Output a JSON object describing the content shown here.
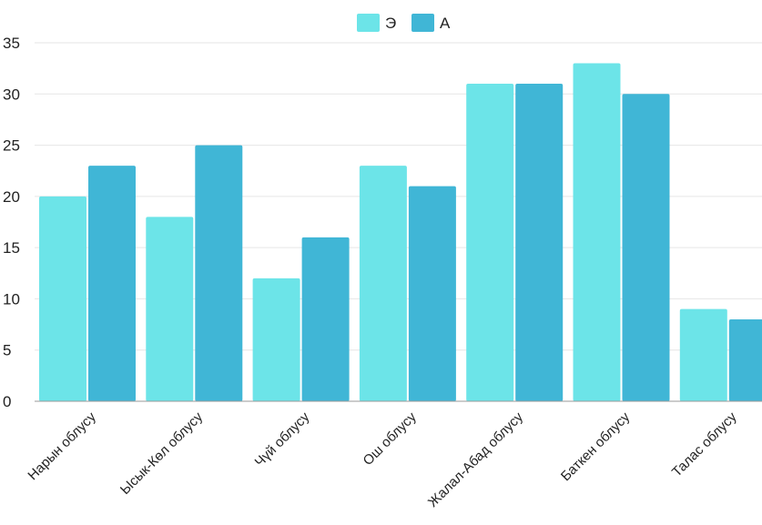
{
  "chart_data": {
    "type": "bar",
    "categories": [
      "Нарын облусу",
      "Ысык-Көл облусу",
      "Чүй облусу",
      "Ош облусу",
      "Жалал-Абад облусу",
      "Баткен облусу",
      "Талас облусу"
    ],
    "series": [
      {
        "name": "Э",
        "color": "#6ce4e8",
        "values": [
          20,
          18,
          12,
          23,
          31,
          33,
          9
        ]
      },
      {
        "name": "А",
        "color": "#40b6d6",
        "values": [
          23,
          25,
          16,
          21,
          31,
          30,
          8
        ]
      }
    ],
    "ylim": [
      0,
      35
    ],
    "yticks": [
      0,
      5,
      10,
      15,
      20,
      25,
      30,
      35
    ],
    "grid": true,
    "legend": "top-center"
  }
}
